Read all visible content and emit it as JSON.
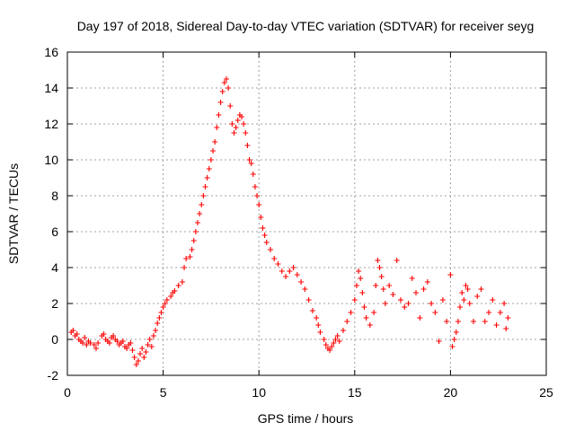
{
  "chart_data": {
    "type": "scatter",
    "title": "Day 197 of 2018, Sidereal Day-to-day VTEC variation (SDTVAR) for receiver seyg",
    "xlabel": "GPS time / hours",
    "ylabel": "SDTVAR / TECUs",
    "xlim": [
      0,
      25
    ],
    "ylim": [
      -2,
      16
    ],
    "xticks": [
      "0",
      "5",
      "10",
      "15",
      "20",
      "25"
    ],
    "yticks": [
      "-2",
      "0",
      "2",
      "4",
      "6",
      "8",
      "10",
      "12",
      "14",
      "16"
    ],
    "grid": true,
    "marker": "+",
    "color": "#ff0000",
    "series": [
      {
        "name": "SDTVAR",
        "points": [
          [
            0.2,
            0.4
          ],
          [
            0.3,
            0.5
          ],
          [
            0.4,
            0.2
          ],
          [
            0.5,
            0.3
          ],
          [
            0.6,
            0.0
          ],
          [
            0.7,
            -0.1
          ],
          [
            0.8,
            -0.2
          ],
          [
            0.9,
            0.1
          ],
          [
            1.0,
            -0.3
          ],
          [
            1.1,
            -0.1
          ],
          [
            1.2,
            -0.2
          ],
          [
            1.4,
            -0.3
          ],
          [
            1.5,
            -0.5
          ],
          [
            1.6,
            -0.2
          ],
          [
            1.8,
            0.2
          ],
          [
            1.9,
            0.3
          ],
          [
            2.0,
            0.0
          ],
          [
            2.1,
            -0.1
          ],
          [
            2.2,
            -0.2
          ],
          [
            2.3,
            0.1
          ],
          [
            2.4,
            0.2
          ],
          [
            2.5,
            0.0
          ],
          [
            2.6,
            -0.1
          ],
          [
            2.7,
            -0.3
          ],
          [
            2.8,
            -0.2
          ],
          [
            2.9,
            -0.1
          ],
          [
            3.0,
            -0.4
          ],
          [
            3.1,
            -0.5
          ],
          [
            3.2,
            -0.3
          ],
          [
            3.3,
            -0.2
          ],
          [
            3.4,
            -0.6
          ],
          [
            3.5,
            -1.0
          ],
          [
            3.6,
            -1.4
          ],
          [
            3.7,
            -1.2
          ],
          [
            3.8,
            -0.8
          ],
          [
            3.9,
            -0.5
          ],
          [
            4.0,
            -1.0
          ],
          [
            4.1,
            -0.7
          ],
          [
            4.2,
            -0.3
          ],
          [
            4.3,
            0.0
          ],
          [
            4.4,
            -0.4
          ],
          [
            4.5,
            0.2
          ],
          [
            4.6,
            0.5
          ],
          [
            4.7,
            0.9
          ],
          [
            4.8,
            1.2
          ],
          [
            4.9,
            1.5
          ],
          [
            5.0,
            1.8
          ],
          [
            5.1,
            2.0
          ],
          [
            5.2,
            2.2
          ],
          [
            5.4,
            2.4
          ],
          [
            5.5,
            2.6
          ],
          [
            5.6,
            2.7
          ],
          [
            5.8,
            3.0
          ],
          [
            6.0,
            3.2
          ],
          [
            6.1,
            4.0
          ],
          [
            6.2,
            4.5
          ],
          [
            6.4,
            4.6
          ],
          [
            6.5,
            5.0
          ],
          [
            6.6,
            5.5
          ],
          [
            6.7,
            6.0
          ],
          [
            6.8,
            6.5
          ],
          [
            6.9,
            7.0
          ],
          [
            7.0,
            7.5
          ],
          [
            7.1,
            8.0
          ],
          [
            7.2,
            8.5
          ],
          [
            7.3,
            9.0
          ],
          [
            7.4,
            9.5
          ],
          [
            7.5,
            10.0
          ],
          [
            7.6,
            10.5
          ],
          [
            7.7,
            11.0
          ],
          [
            7.8,
            11.8
          ],
          [
            7.9,
            12.5
          ],
          [
            8.0,
            13.2
          ],
          [
            8.1,
            13.8
          ],
          [
            8.2,
            14.3
          ],
          [
            8.3,
            14.5
          ],
          [
            8.4,
            14.0
          ],
          [
            8.5,
            13.0
          ],
          [
            8.6,
            12.0
          ],
          [
            8.7,
            11.5
          ],
          [
            8.8,
            11.8
          ],
          [
            8.9,
            12.2
          ],
          [
            9.0,
            12.5
          ],
          [
            9.1,
            12.4
          ],
          [
            9.2,
            12.0
          ],
          [
            9.3,
            11.5
          ],
          [
            9.4,
            10.8
          ],
          [
            9.5,
            10.0
          ],
          [
            9.6,
            9.8
          ],
          [
            9.7,
            9.2
          ],
          [
            9.8,
            8.5
          ],
          [
            9.9,
            8.0
          ],
          [
            10.0,
            7.5
          ],
          [
            10.1,
            6.8
          ],
          [
            10.2,
            6.2
          ],
          [
            10.3,
            5.8
          ],
          [
            10.4,
            5.4
          ],
          [
            10.6,
            5.0
          ],
          [
            10.8,
            4.5
          ],
          [
            11.0,
            4.2
          ],
          [
            11.2,
            3.8
          ],
          [
            11.4,
            3.5
          ],
          [
            11.6,
            3.8
          ],
          [
            11.8,
            4.0
          ],
          [
            12.0,
            3.6
          ],
          [
            12.2,
            3.2
          ],
          [
            12.4,
            2.8
          ],
          [
            12.6,
            2.2
          ],
          [
            12.8,
            1.6
          ],
          [
            13.0,
            1.2
          ],
          [
            13.1,
            0.8
          ],
          [
            13.2,
            0.4
          ],
          [
            13.4,
            0.0
          ],
          [
            13.5,
            -0.3
          ],
          [
            13.6,
            -0.5
          ],
          [
            13.7,
            -0.6
          ],
          [
            13.8,
            -0.4
          ],
          [
            13.9,
            -0.2
          ],
          [
            14.0,
            0.0
          ],
          [
            14.1,
            0.2
          ],
          [
            14.2,
            -0.1
          ],
          [
            14.4,
            0.5
          ],
          [
            14.6,
            1.0
          ],
          [
            14.8,
            1.5
          ],
          [
            15.0,
            2.2
          ],
          [
            15.1,
            3.0
          ],
          [
            15.2,
            3.8
          ],
          [
            15.3,
            3.4
          ],
          [
            15.4,
            2.6
          ],
          [
            15.5,
            1.8
          ],
          [
            15.6,
            1.2
          ],
          [
            15.8,
            0.8
          ],
          [
            16.0,
            1.5
          ],
          [
            16.1,
            3.0
          ],
          [
            16.2,
            4.4
          ],
          [
            16.3,
            4.0
          ],
          [
            16.4,
            3.5
          ],
          [
            16.5,
            2.8
          ],
          [
            16.6,
            2.0
          ],
          [
            16.8,
            3.0
          ],
          [
            17.0,
            2.5
          ],
          [
            17.2,
            4.4
          ],
          [
            17.4,
            2.2
          ],
          [
            17.6,
            1.8
          ],
          [
            17.8,
            2.0
          ],
          [
            18.0,
            3.4
          ],
          [
            18.2,
            2.6
          ],
          [
            18.4,
            1.2
          ],
          [
            18.6,
            2.8
          ],
          [
            18.8,
            3.2
          ],
          [
            19.0,
            2.0
          ],
          [
            19.2,
            1.5
          ],
          [
            19.4,
            -0.1
          ],
          [
            19.6,
            2.2
          ],
          [
            19.8,
            1.0
          ],
          [
            20.0,
            3.6
          ],
          [
            20.1,
            -0.4
          ],
          [
            20.2,
            0.0
          ],
          [
            20.3,
            0.4
          ],
          [
            20.4,
            1.0
          ],
          [
            20.5,
            1.8
          ],
          [
            20.6,
            2.6
          ],
          [
            20.7,
            2.2
          ],
          [
            20.8,
            3.0
          ],
          [
            20.9,
            2.8
          ],
          [
            21.0,
            2.0
          ],
          [
            21.2,
            1.0
          ],
          [
            21.4,
            2.4
          ],
          [
            21.6,
            2.8
          ],
          [
            21.8,
            1.0
          ],
          [
            22.0,
            1.5
          ],
          [
            22.2,
            2.2
          ],
          [
            22.4,
            0.8
          ],
          [
            22.6,
            1.5
          ],
          [
            22.8,
            2.0
          ],
          [
            22.9,
            0.6
          ],
          [
            23.0,
            1.2
          ]
        ]
      }
    ]
  }
}
